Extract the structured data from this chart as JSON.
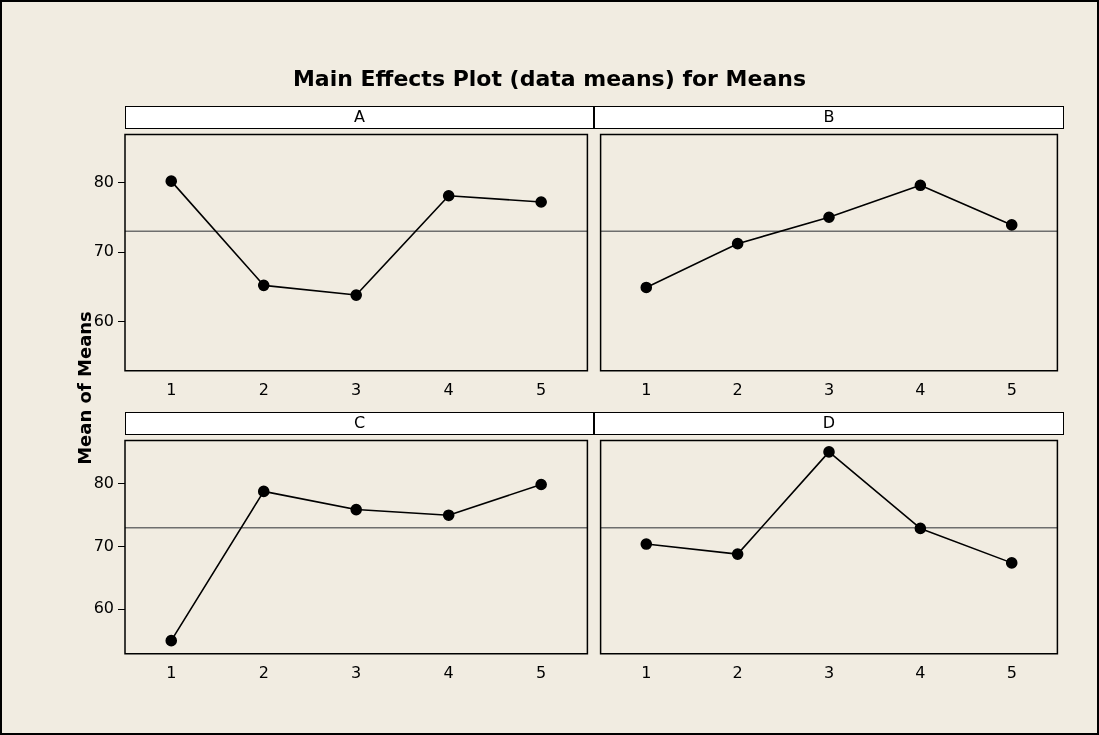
{
  "chart_data": [
    {
      "type": "line",
      "title": "A",
      "annotations": [
        "Main Effects Plot (data means) for Means"
      ],
      "ylabel": "Mean of Means",
      "categories": [
        "1",
        "2",
        "3",
        "4",
        "5"
      ],
      "series": [
        {
          "color": "#000000",
          "values": [
            80.2,
            65.2,
            63.8,
            78.1,
            77.2
          ]
        }
      ],
      "ylim": [
        52.9,
        86.9
      ],
      "yticks": [
        60,
        70,
        80
      ],
      "ref_lines": [
        {
          "axis": "y",
          "value": 73.0,
          "color": "#6e6e6e"
        }
      ],
      "marker": "circle",
      "legend": false
    },
    {
      "type": "line",
      "title": "B",
      "categories": [
        "1",
        "2",
        "3",
        "4",
        "5"
      ],
      "series": [
        {
          "color": "#000000",
          "values": [
            64.9,
            71.2,
            75.0,
            79.6,
            73.9
          ]
        }
      ],
      "ylim": [
        52.9,
        86.9
      ],
      "yticks": [
        60,
        70,
        80
      ],
      "ref_lines": [
        {
          "axis": "y",
          "value": 73.0,
          "color": "#6e6e6e"
        }
      ],
      "marker": "circle",
      "legend": false,
      "tick_labels": "x"
    },
    {
      "type": "line",
      "title": "C",
      "categories": [
        "1",
        "2",
        "3",
        "4",
        "5"
      ],
      "series": [
        {
          "color": "#000000",
          "values": [
            55.0,
            78.8,
            75.9,
            75.0,
            79.9
          ]
        }
      ],
      "ylim": [
        52.9,
        86.9
      ],
      "yticks": [
        60,
        70,
        80
      ],
      "ref_lines": [
        {
          "axis": "y",
          "value": 73.0,
          "color": "#6e6e6e"
        }
      ],
      "marker": "circle",
      "legend": false
    },
    {
      "type": "line",
      "title": "D",
      "categories": [
        "1",
        "2",
        "3",
        "4",
        "5"
      ],
      "series": [
        {
          "color": "#000000",
          "values": [
            70.4,
            68.8,
            85.1,
            72.9,
            67.4
          ]
        }
      ],
      "ylim": [
        52.9,
        86.9
      ],
      "yticks": [
        60,
        70,
        80
      ],
      "ref_lines": [
        {
          "axis": "y",
          "value": 73.0,
          "color": "#6e6e6e"
        }
      ],
      "marker": "circle",
      "legend": false,
      "tick_labels": "x"
    }
  ]
}
